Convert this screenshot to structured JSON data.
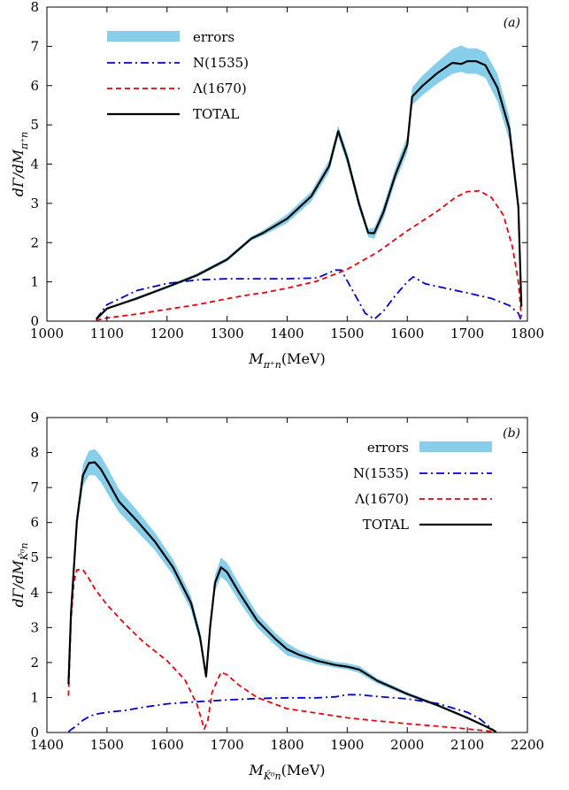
{
  "chart_data": [
    {
      "type": "line",
      "panel_label": "(a)",
      "xlabel": "M_{π⁺n}(MeV)",
      "xlabel_main": "M",
      "xlabel_sub": "π⁺n",
      "xlabel_unit": "(MeV)",
      "ylabel_text": "dΓ/dM",
      "ylabel_sub": "π⁺n",
      "xlim": [
        1000,
        1800
      ],
      "ylim": [
        0,
        8
      ],
      "xticks": [
        "1000",
        "1100",
        "1200",
        "1300",
        "1400",
        "1500",
        "1600",
        "1700",
        "1800"
      ],
      "yticks": [
        "0",
        "1",
        "2",
        "3",
        "4",
        "5",
        "6",
        "7",
        "8"
      ],
      "legend_position": "top-left",
      "legend": [
        "errors",
        "N(1535)",
        "Λ(1670)",
        "TOTAL"
      ],
      "series": [
        {
          "name": "errors",
          "style": "band",
          "color": "#87ceeb",
          "x": [
            1082,
            1100,
            1150,
            1200,
            1250,
            1300,
            1340,
            1360,
            1400,
            1440,
            1470,
            1485,
            1500,
            1520,
            1535,
            1545,
            1560,
            1580,
            1600,
            1608,
            1625,
            1650,
            1675,
            1690,
            1700,
            1715,
            1730,
            1750,
            1770,
            1785,
            1790
          ],
          "upper": [
            0.07,
            0.35,
            0.62,
            0.9,
            1.22,
            1.62,
            2.15,
            2.32,
            2.72,
            3.3,
            4.1,
            4.98,
            4.3,
            3.1,
            2.35,
            2.38,
            2.92,
            3.9,
            4.7,
            5.95,
            6.25,
            6.6,
            6.93,
            7.02,
            6.95,
            6.95,
            6.85,
            6.3,
            5.2,
            3.1,
            0.4
          ],
          "lower": [
            0.03,
            0.3,
            0.55,
            0.83,
            1.13,
            1.52,
            2.05,
            2.18,
            2.5,
            3.05,
            3.8,
            4.7,
            4.0,
            2.85,
            2.15,
            2.1,
            2.6,
            3.55,
            4.3,
            5.5,
            5.75,
            6.05,
            6.3,
            6.35,
            6.3,
            6.3,
            6.2,
            5.6,
            4.6,
            2.7,
            0.35
          ]
        },
        {
          "name": "N(1535)",
          "style": "dashdot",
          "color": "#0000cc",
          "x": [
            1082,
            1100,
            1150,
            1200,
            1250,
            1300,
            1350,
            1400,
            1450,
            1480,
            1490,
            1510,
            1530,
            1545,
            1560,
            1580,
            1600,
            1610,
            1630,
            1660,
            1700,
            1740,
            1770,
            1785,
            1790
          ],
          "y": [
            0.05,
            0.42,
            0.78,
            0.96,
            1.05,
            1.08,
            1.08,
            1.08,
            1.1,
            1.3,
            1.3,
            0.75,
            0.2,
            0.05,
            0.25,
            0.65,
            1.0,
            1.13,
            0.95,
            0.85,
            0.72,
            0.58,
            0.4,
            0.2,
            0.0
          ]
        },
        {
          "name": "Λ(1670)",
          "style": "dashed",
          "color": "#e8000b",
          "x": [
            1082,
            1100,
            1150,
            1200,
            1250,
            1300,
            1340,
            1360,
            1400,
            1450,
            1480,
            1500,
            1550,
            1600,
            1650,
            1680,
            1700,
            1720,
            1740,
            1760,
            1775,
            1785,
            1790
          ],
          "y": [
            0.02,
            0.08,
            0.18,
            0.3,
            0.42,
            0.57,
            0.68,
            0.72,
            0.84,
            1.02,
            1.2,
            1.32,
            1.75,
            2.3,
            2.8,
            3.15,
            3.3,
            3.32,
            3.15,
            2.7,
            1.9,
            1.0,
            0.1
          ]
        },
        {
          "name": "TOTAL",
          "style": "solid",
          "color": "#000000",
          "x": [
            1082,
            1100,
            1150,
            1200,
            1250,
            1300,
            1340,
            1360,
            1400,
            1440,
            1470,
            1485,
            1500,
            1520,
            1535,
            1545,
            1560,
            1580,
            1600,
            1608,
            1625,
            1650,
            1675,
            1690,
            1700,
            1715,
            1730,
            1750,
            1770,
            1785,
            1790
          ],
          "y": [
            0.05,
            0.32,
            0.58,
            0.87,
            1.17,
            1.57,
            2.1,
            2.25,
            2.61,
            3.18,
            3.95,
            4.84,
            4.15,
            2.97,
            2.25,
            2.24,
            2.76,
            3.72,
            4.5,
            5.72,
            5.99,
            6.32,
            6.58,
            6.55,
            6.62,
            6.62,
            6.52,
            5.95,
            4.9,
            2.9,
            0.37
          ]
        }
      ]
    },
    {
      "type": "line",
      "panel_label": "(b)",
      "xlabel": "M_{K̄⁰n}(MeV)",
      "xlabel_main": "M",
      "xlabel_sub": "K̄⁰n",
      "xlabel_unit": "(MeV)",
      "ylabel_text": "dΓ/dM",
      "ylabel_sub": "K̄⁰n",
      "xlim": [
        1400,
        2200
      ],
      "ylim": [
        0,
        9
      ],
      "xticks": [
        "1400",
        "1500",
        "1600",
        "1700",
        "1800",
        "1900",
        "2000",
        "2100",
        "2200"
      ],
      "yticks": [
        "0",
        "1",
        "2",
        "3",
        "4",
        "5",
        "6",
        "7",
        "8",
        "9"
      ],
      "legend_position": "top-right",
      "legend": [
        "errors",
        "N(1535)",
        "Λ(1670)",
        "TOTAL"
      ],
      "series": [
        {
          "name": "errors",
          "style": "band",
          "color": "#87ceeb",
          "x": [
            1436,
            1440,
            1450,
            1460,
            1470,
            1480,
            1490,
            1500,
            1520,
            1550,
            1580,
            1610,
            1640,
            1655,
            1665,
            1672,
            1680,
            1690,
            1700,
            1720,
            1750,
            1780,
            1800,
            1820,
            1850,
            1880,
            1900,
            1920,
            1950,
            2000,
            2050,
            2100,
            2130,
            2148
          ],
          "upper": [
            1.45,
            3.6,
            6.3,
            7.65,
            8.05,
            8.1,
            7.9,
            7.6,
            6.95,
            6.35,
            5.7,
            4.95,
            3.9,
            2.9,
            1.65,
            3.2,
            4.5,
            5.0,
            4.85,
            4.25,
            3.4,
            2.85,
            2.55,
            2.35,
            2.15,
            2.02,
            1.98,
            1.9,
            1.55,
            1.15,
            0.82,
            0.45,
            0.2,
            0.03
          ],
          "lower": [
            1.3,
            3.2,
            5.8,
            7.05,
            7.35,
            7.35,
            7.15,
            6.85,
            6.3,
            5.75,
            5.2,
            4.5,
            3.5,
            2.55,
            1.55,
            2.9,
            4.05,
            4.45,
            4.3,
            3.75,
            3.0,
            2.5,
            2.2,
            2.1,
            1.95,
            1.85,
            1.8,
            1.7,
            1.4,
            1.05,
            0.74,
            0.38,
            0.15,
            0.0
          ]
        },
        {
          "name": "N(1535)",
          "style": "dashdot",
          "color": "#0000cc",
          "x": [
            1436,
            1440,
            1450,
            1460,
            1470,
            1480,
            1500,
            1530,
            1560,
            1600,
            1650,
            1700,
            1750,
            1800,
            1850,
            1880,
            1900,
            1920,
            1950,
            2000,
            2050,
            2100,
            2120,
            2140,
            2148
          ],
          "y": [
            0.02,
            0.08,
            0.2,
            0.35,
            0.45,
            0.52,
            0.58,
            0.63,
            0.72,
            0.82,
            0.88,
            0.93,
            0.97,
            0.99,
            0.99,
            1.02,
            1.08,
            1.08,
            1.03,
            0.96,
            0.83,
            0.58,
            0.4,
            0.12,
            0.0
          ]
        },
        {
          "name": "Λ(1670)",
          "style": "dashed",
          "color": "#e8000b",
          "x": [
            1436,
            1440,
            1445,
            1450,
            1460,
            1470,
            1480,
            1500,
            1530,
            1560,
            1600,
            1630,
            1650,
            1662,
            1668,
            1675,
            1690,
            1700,
            1720,
            1750,
            1800,
            1850,
            1900,
            1950,
            2000,
            2050,
            2100,
            2140,
            2148
          ],
          "y": [
            1.05,
            3.2,
            4.3,
            4.65,
            4.65,
            4.4,
            4.1,
            3.65,
            3.1,
            2.6,
            2.05,
            1.5,
            0.8,
            0.1,
            0.35,
            1.15,
            1.72,
            1.65,
            1.35,
            1.0,
            0.68,
            0.55,
            0.42,
            0.33,
            0.25,
            0.18,
            0.1,
            0.03,
            0.0
          ]
        },
        {
          "name": "TOTAL",
          "style": "solid",
          "color": "#000000",
          "x": [
            1436,
            1440,
            1450,
            1460,
            1470,
            1480,
            1490,
            1500,
            1520,
            1550,
            1580,
            1610,
            1640,
            1655,
            1665,
            1672,
            1680,
            1690,
            1700,
            1720,
            1750,
            1780,
            1800,
            1820,
            1850,
            1880,
            1900,
            1920,
            1950,
            2000,
            2050,
            2100,
            2130,
            2148
          ],
          "y": [
            1.38,
            3.4,
            6.05,
            7.35,
            7.7,
            7.72,
            7.52,
            7.22,
            6.6,
            6.05,
            5.45,
            4.72,
            3.7,
            2.72,
            1.6,
            3.05,
            4.28,
            4.72,
            4.58,
            4.0,
            3.2,
            2.68,
            2.38,
            2.22,
            2.05,
            1.93,
            1.88,
            1.8,
            1.48,
            1.1,
            0.78,
            0.42,
            0.18,
            0.02
          ]
        }
      ]
    }
  ]
}
